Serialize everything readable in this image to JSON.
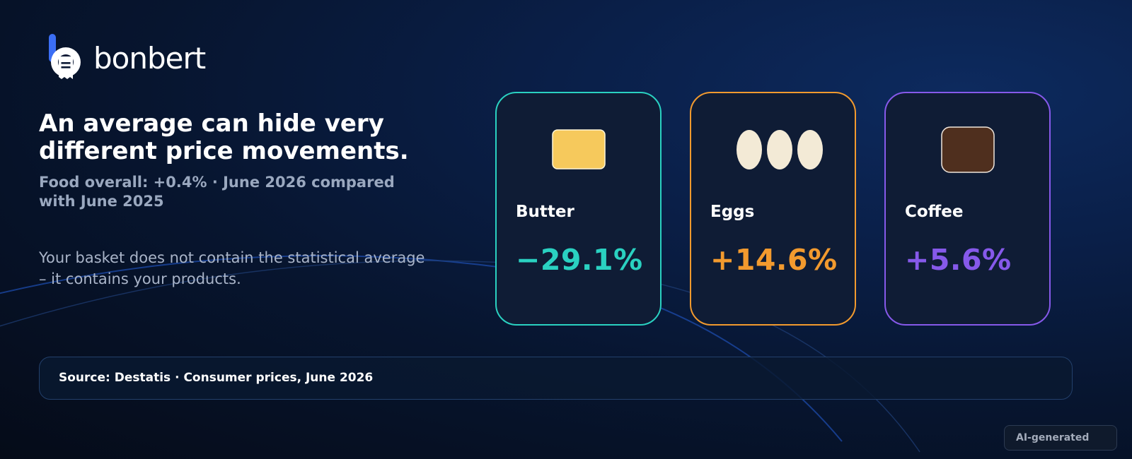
{
  "brand": {
    "name": "bonbert",
    "logo_icon": "receipt-icon",
    "accent": "#3b6ef5"
  },
  "headline": "An average can hide very different price movements.",
  "subheadline": "Food overall: +0.4% · June 2026 compared with June 2025",
  "note": "Your basket does not contain the statistical average – it contains your products.",
  "products": [
    {
      "label": "Butter",
      "change": "−29.1%",
      "color": "#2ad1c1",
      "icon": "butter-icon"
    },
    {
      "label": "Eggs",
      "change": "+14.6%",
      "color": "#f29a2e",
      "icon": "eggs-icon"
    },
    {
      "label": "Coffee",
      "change": "+5.6%",
      "color": "#8659ea",
      "icon": "coffee-icon"
    }
  ],
  "source": "Source: Destatis · Consumer prices, June 2026",
  "ai_badge": "AI-generated"
}
